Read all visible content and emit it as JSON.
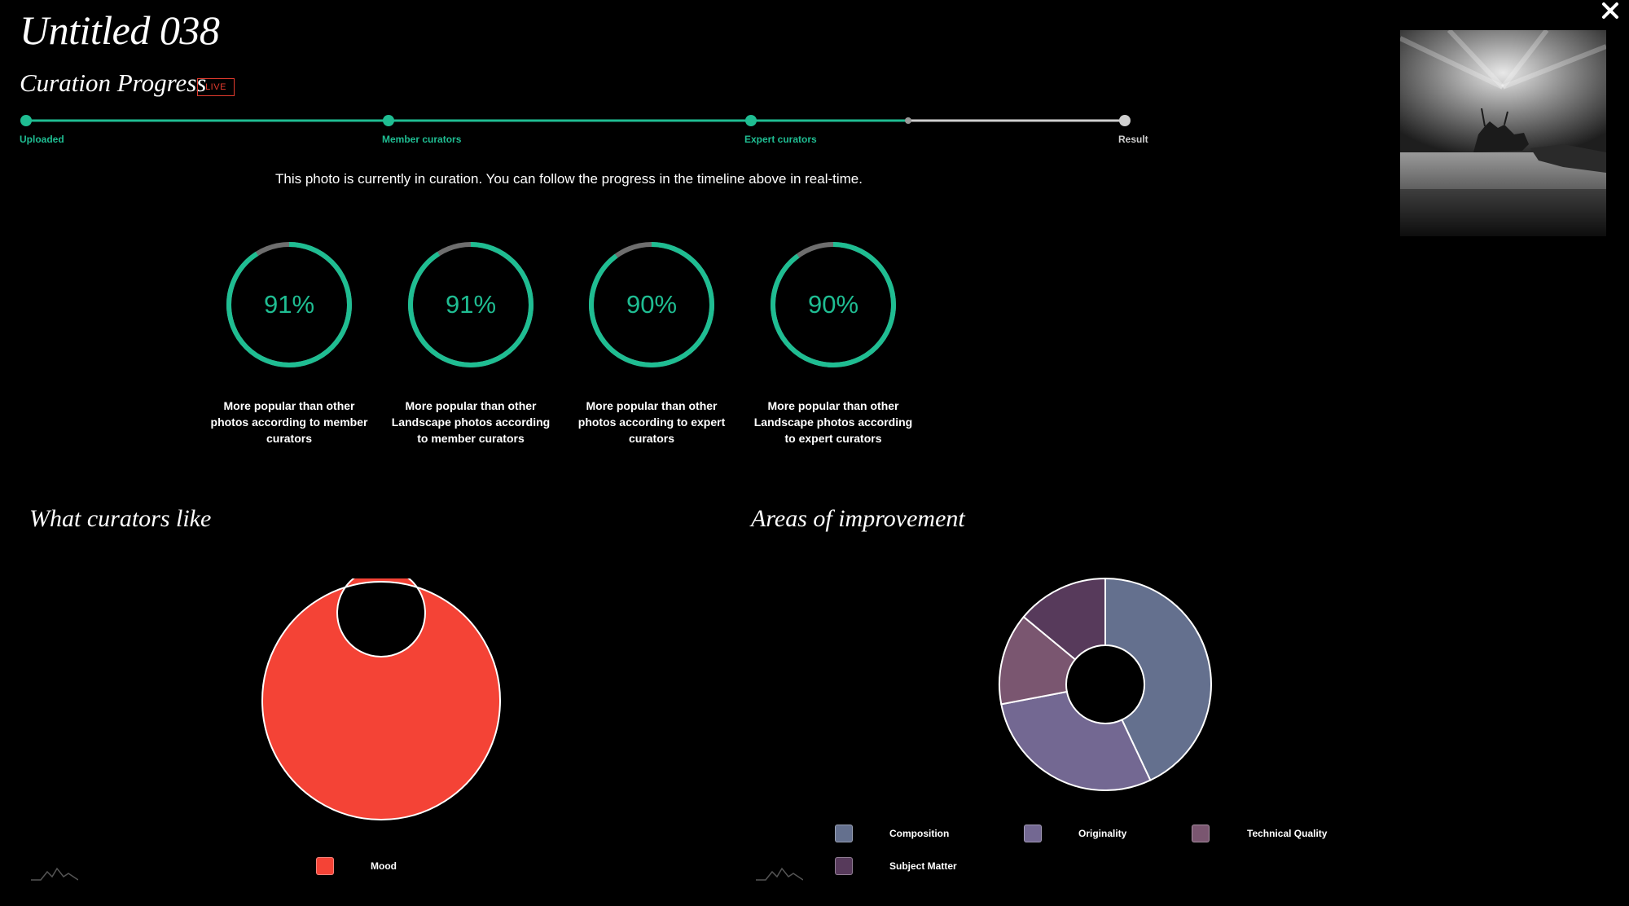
{
  "header": {
    "title": "Untitled 038",
    "section_title": "Curation Progress",
    "live_badge": "LIVE"
  },
  "timeline": {
    "stages": [
      {
        "label": "Uploaded",
        "state": "complete"
      },
      {
        "label": "Member curators",
        "state": "complete"
      },
      {
        "label": "Expert curators",
        "state": "active"
      },
      {
        "label": "Result",
        "state": "pending"
      }
    ],
    "progress": 0.81,
    "accent_color": "#1fbd92",
    "pending_color": "#cfcfcf"
  },
  "status_message": "This photo is currently in curation. You can follow the progress in the timeline above in real-time.",
  "gauges": [
    {
      "value": 91,
      "display": "91%",
      "caption": "More popular than other photos according to member curators"
    },
    {
      "value": 91,
      "display": "91%",
      "caption": "More popular than other Landscape photos according to member curators"
    },
    {
      "value": 90,
      "display": "90%",
      "caption": "More popular than other photos according to expert curators"
    },
    {
      "value": 90,
      "display": "90%",
      "caption": "More popular than other Landscape photos according to expert curators"
    }
  ],
  "likes": {
    "title": "What curators like",
    "chart_data": {
      "type": "pie",
      "slices": [
        {
          "label": "Mood",
          "value": 100,
          "color": "#f44336"
        }
      ]
    }
  },
  "improvements": {
    "title": "Areas of improvement",
    "chart_data": {
      "type": "pie",
      "slices": [
        {
          "label": "Composition",
          "value": 43,
          "color": "#64708e"
        },
        {
          "label": "Originality",
          "value": 29,
          "color": "#736892"
        },
        {
          "label": "Technical Quality",
          "value": 14,
          "color": "#7a5670"
        },
        {
          "label": "Subject Matter",
          "value": 14,
          "color": "#573a5b"
        }
      ]
    }
  },
  "icons": {
    "close": "close-icon",
    "brand": "mountain-logo-icon"
  }
}
